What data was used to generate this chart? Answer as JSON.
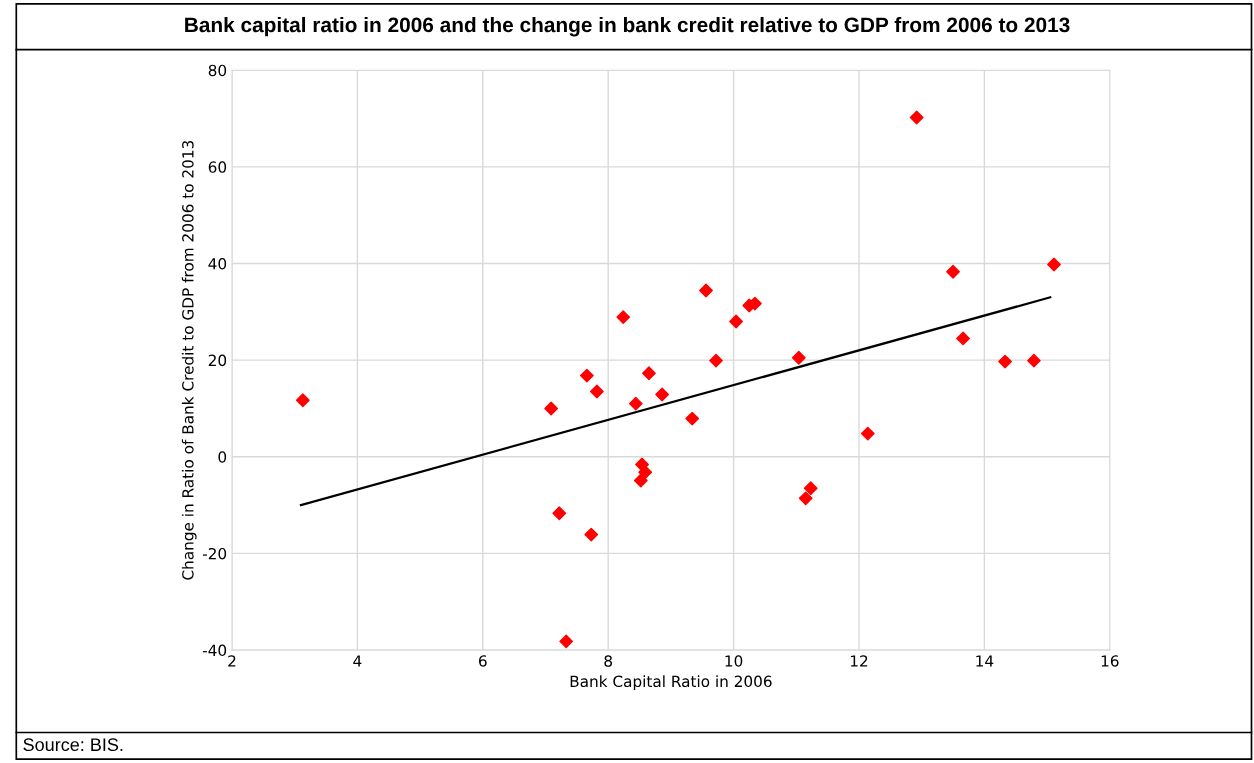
{
  "chart_data": {
    "type": "scatter",
    "title": "Bank capital ratio in 2006 and the change in bank credit relative to GDP from 2006 to 2013",
    "xlabel": "Bank Capital Ratio in 2006",
    "ylabel": "Change in Ratio of Bank Credit to GDP from 2006 to 2013",
    "annotations": [
      "Source: BIS."
    ],
    "xlim": [
      2,
      16
    ],
    "xticks": [
      2,
      4,
      6,
      8,
      10,
      12,
      14,
      16
    ],
    "ylim": [
      -40,
      80
    ],
    "yticks": [
      -40,
      -20,
      0,
      20,
      40,
      60,
      80
    ],
    "grid": true,
    "legend": false,
    "series": [
      {
        "marker": "diamond",
        "color": "#ff0000",
        "x": [
          3.13,
          7.09,
          7.66,
          7.82,
          7.22,
          7.73,
          7.33,
          8.24,
          8.44,
          8.65,
          8.86,
          8.54,
          8.59,
          8.52,
          9.34,
          9.56,
          9.72,
          10.04,
          10.25,
          10.34,
          11.04,
          11.23,
          11.15,
          12.14,
          12.92,
          13.5,
          13.66,
          14.33,
          14.79,
          15.11
        ],
        "values": [
          11.7,
          10.0,
          16.8,
          13.5,
          -11.7,
          -16.1,
          -38.2,
          28.9,
          11.0,
          17.3,
          12.9,
          -1.6,
          -3.2,
          -4.9,
          7.9,
          34.4,
          19.9,
          28.0,
          31.3,
          31.7,
          20.5,
          -6.5,
          -8.6,
          4.8,
          70.2,
          38.3,
          24.5,
          19.7,
          19.9,
          39.8
        ]
      },
      {
        "type": "line",
        "marker": "none",
        "color": "#000000",
        "x": [
          3.1,
          15.05
        ],
        "values": [
          -10,
          33
        ]
      }
    ]
  }
}
